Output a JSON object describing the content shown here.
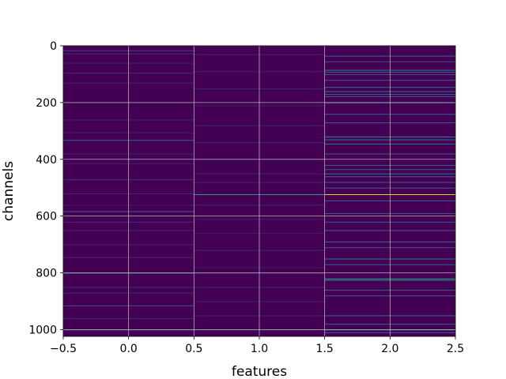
{
  "chart_data": {
    "type": "heatmap",
    "title": "",
    "xlabel": "features",
    "ylabel": "channels",
    "xlim": [
      -0.5,
      2.5
    ],
    "ylim": [
      1024,
      0
    ],
    "y_inverted": true,
    "grid": true,
    "colormap": "viridis",
    "x_ticks": [
      -0.5,
      0.0,
      0.5,
      1.0,
      1.5,
      2.0,
      2.5
    ],
    "x_tick_labels": [
      "−0.5",
      "0.0",
      "0.5",
      "1.0",
      "1.5",
      "2.0",
      "2.5"
    ],
    "y_ticks": [
      0,
      200,
      400,
      600,
      800,
      1000
    ],
    "y_tick_labels": [
      "0",
      "200",
      "400",
      "600",
      "800",
      "1000"
    ],
    "columns": [
      {
        "feature": 0,
        "values": [
          [
            16,
            0.22
          ],
          [
            27,
            0.15
          ],
          [
            60,
            0.12
          ],
          [
            95,
            0.14
          ],
          [
            130,
            0.12
          ],
          [
            200,
            0.1
          ],
          [
            260,
            0.13
          ],
          [
            305,
            0.12
          ],
          [
            332,
            0.35
          ],
          [
            380,
            0.12
          ],
          [
            415,
            0.1
          ],
          [
            470,
            0.14
          ],
          [
            520,
            0.12
          ],
          [
            560,
            0.1
          ],
          [
            583,
            0.3
          ],
          [
            620,
            0.15
          ],
          [
            650,
            0.12
          ],
          [
            700,
            0.13
          ],
          [
            745,
            0.12
          ],
          [
            800,
            0.4
          ],
          [
            850,
            0.15
          ],
          [
            870,
            0.13
          ],
          [
            915,
            0.25
          ],
          [
            960,
            0.12
          ],
          [
            1000,
            0.3
          ]
        ]
      },
      {
        "feature": 1,
        "values": [
          [
            30,
            0.12
          ],
          [
            90,
            0.1
          ],
          [
            150,
            0.12
          ],
          [
            210,
            0.1
          ],
          [
            280,
            0.11
          ],
          [
            340,
            0.12
          ],
          [
            400,
            0.1
          ],
          [
            450,
            0.11
          ],
          [
            480,
            0.12
          ],
          [
            523,
            0.55
          ],
          [
            560,
            0.12
          ],
          [
            610,
            0.1
          ],
          [
            660,
            0.11
          ],
          [
            720,
            0.12
          ],
          [
            780,
            0.1
          ],
          [
            800,
            0.15
          ],
          [
            850,
            0.12
          ],
          [
            900,
            0.11
          ],
          [
            950,
            0.12
          ],
          [
            1000,
            0.18
          ]
        ]
      },
      {
        "feature": 2,
        "values": [
          [
            35,
            0.35
          ],
          [
            55,
            0.25
          ],
          [
            85,
            0.45
          ],
          [
            92,
            0.3
          ],
          [
            100,
            0.28
          ],
          [
            120,
            0.3
          ],
          [
            145,
            0.35
          ],
          [
            160,
            0.4
          ],
          [
            170,
            0.35
          ],
          [
            178,
            0.3
          ],
          [
            200,
            0.3
          ],
          [
            240,
            0.28
          ],
          [
            270,
            0.3
          ],
          [
            320,
            0.45
          ],
          [
            330,
            0.4
          ],
          [
            345,
            0.35
          ],
          [
            380,
            0.3
          ],
          [
            420,
            0.35
          ],
          [
            435,
            0.3
          ],
          [
            450,
            0.4
          ],
          [
            460,
            0.35
          ],
          [
            480,
            0.3
          ],
          [
            500,
            0.28
          ],
          [
            523,
            0.95
          ],
          [
            545,
            0.3
          ],
          [
            590,
            0.28
          ],
          [
            620,
            0.3
          ],
          [
            650,
            0.3
          ],
          [
            690,
            0.35
          ],
          [
            710,
            0.28
          ],
          [
            750,
            0.4
          ],
          [
            770,
            0.3
          ],
          [
            820,
            0.55
          ],
          [
            825,
            0.5
          ],
          [
            860,
            0.3
          ],
          [
            880,
            0.28
          ],
          [
            950,
            0.35
          ],
          [
            980,
            0.3
          ],
          [
            1000,
            0.45
          ],
          [
            1010,
            0.3
          ]
        ]
      }
    ]
  }
}
